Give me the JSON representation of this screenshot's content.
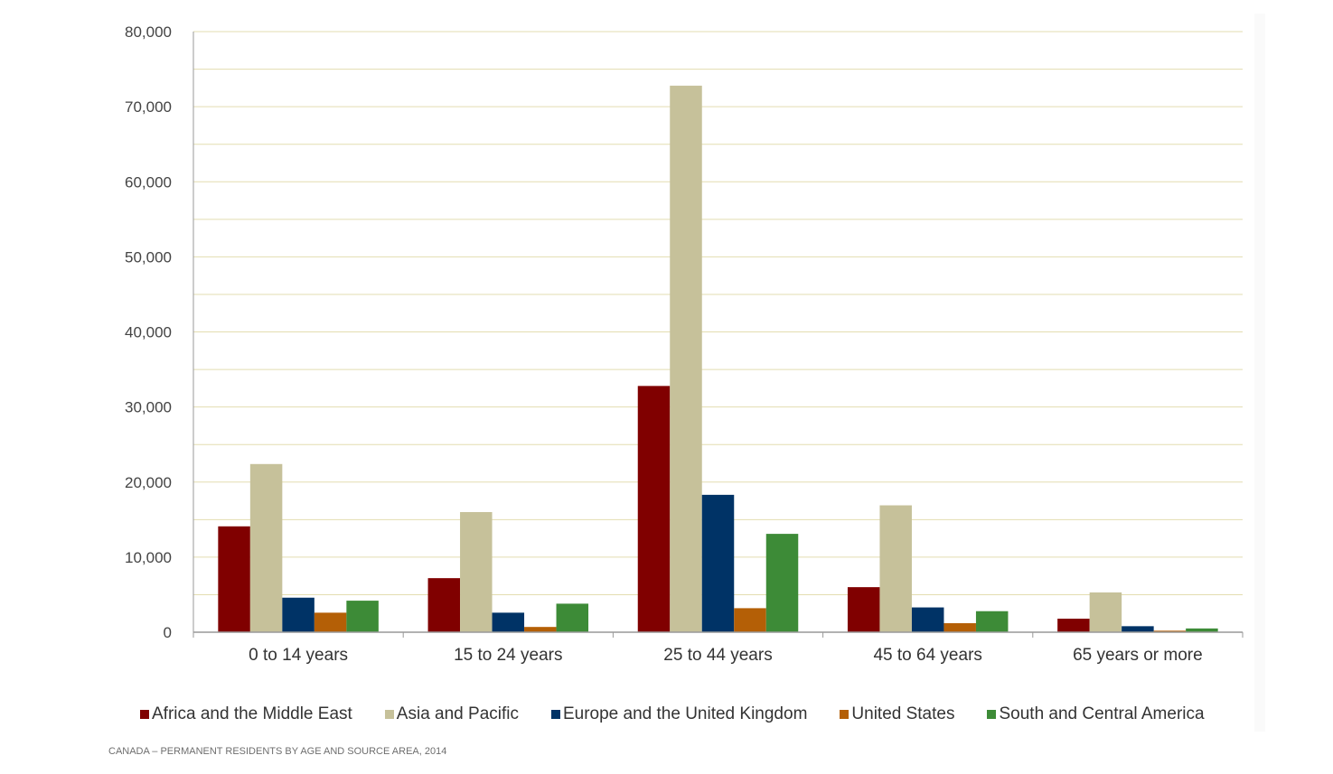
{
  "chart_data": {
    "type": "bar",
    "categories": [
      "0 to 14 years",
      "15 to 24 years",
      "25 to 44 years",
      "45 to 64 years",
      "65 years or more"
    ],
    "series": [
      {
        "name": "Africa and the Middle East",
        "color": "#800000",
        "values": [
          14100,
          7200,
          32800,
          6000,
          1800
        ]
      },
      {
        "name": "Asia and Pacific",
        "color": "#C6C19A",
        "values": [
          22400,
          16000,
          72800,
          16900,
          5300
        ]
      },
      {
        "name": "Europe and the United Kingdom",
        "color": "#003366",
        "values": [
          4600,
          2600,
          18300,
          3300,
          800
        ]
      },
      {
        "name": "United States",
        "color": "#B45F06",
        "values": [
          2600,
          700,
          3200,
          1200,
          200
        ]
      },
      {
        "name": "South and Central America",
        "color": "#3D8B37",
        "values": [
          4200,
          3800,
          13100,
          2800,
          500
        ]
      }
    ],
    "ylim": [
      0,
      80000
    ],
    "yticks": [
      "0",
      "10,000",
      "20,000",
      "30,000",
      "40,000",
      "50,000",
      "60,000",
      "70,000",
      "80,000"
    ],
    "grid": true,
    "legend_position": "bottom",
    "caption": "CANADA – PERMANENT RESIDENTS BY AGE AND SOURCE AREA, 2014"
  }
}
